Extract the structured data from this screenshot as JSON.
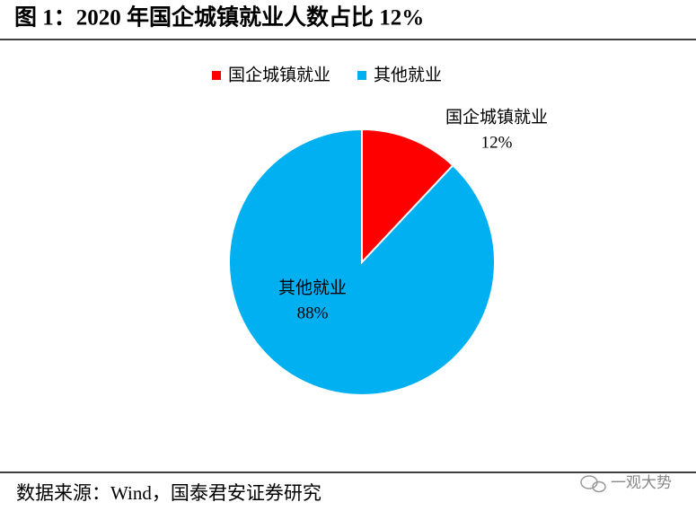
{
  "chart_data": {
    "type": "pie",
    "title": "图 1：2020 年国企城镇就业人数占比 12%",
    "categories": [
      "国企城镇就业",
      "其他就业"
    ],
    "values": [
      12,
      88
    ],
    "value_labels": [
      "12%",
      "88%"
    ],
    "colors": [
      "#ff0000",
      "#00b0f0"
    ],
    "legend": "top",
    "source": "数据来源：Wind，国泰君安证券研究",
    "watermark": "一观大势"
  }
}
